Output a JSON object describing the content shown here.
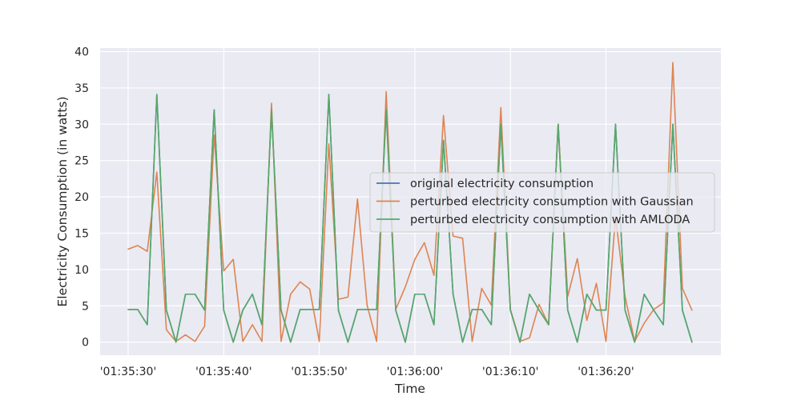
{
  "chart_data": {
    "type": "line",
    "title": "",
    "xlabel": "Time",
    "ylabel": "Electricity Consumption (in watts)",
    "x_tick_labels": [
      "'01:35:30'",
      "'01:35:40'",
      "'01:35:50'",
      "'01:36:00'",
      "'01:36:10'",
      "'01:36:20'"
    ],
    "y_tick_labels": [
      "0",
      "5",
      "10",
      "15",
      "20",
      "25",
      "30",
      "35",
      "40"
    ],
    "ylim": [
      -1.8,
      40.5
    ],
    "grid": true,
    "legend_position": "center-right",
    "x": [
      "01:35:30",
      "01:35:31",
      "01:35:32",
      "01:35:33",
      "01:35:34",
      "01:35:35",
      "01:35:36",
      "01:35:37",
      "01:35:38",
      "01:35:39",
      "01:35:40",
      "01:35:41",
      "01:35:42",
      "01:35:43",
      "01:35:44",
      "01:35:45",
      "01:35:46",
      "01:35:47",
      "01:35:48",
      "01:35:49",
      "01:35:50",
      "01:35:51",
      "01:35:52",
      "01:35:53",
      "01:35:54",
      "01:35:55",
      "01:35:56",
      "01:35:57",
      "01:35:58",
      "01:35:59",
      "01:36:00",
      "01:36:01",
      "01:36:02",
      "01:36:03",
      "01:36:04",
      "01:36:05",
      "01:36:06",
      "01:36:07",
      "01:36:08",
      "01:36:09",
      "01:36:10",
      "01:36:11",
      "01:36:12",
      "01:36:13",
      "01:36:14",
      "01:36:15",
      "01:36:16",
      "01:36:17",
      "01:36:18",
      "01:36:19",
      "01:36:20",
      "01:36:21",
      "01:36:22",
      "01:36:23",
      "01:36:24",
      "01:36:25",
      "01:36:26",
      "01:36:27",
      "01:36:28",
      "01:36:29"
    ],
    "series": [
      {
        "name": "original electricity consumption",
        "color": "#4c72b0",
        "values": [
          4.5,
          4.5,
          2.4,
          34.1,
          4.4,
          0,
          6.6,
          6.6,
          4.4,
          32,
          4.4,
          0,
          4.4,
          6.6,
          2.4,
          32,
          4.4,
          0,
          4.5,
          4.5,
          4.5,
          34.1,
          4.4,
          0,
          4.5,
          4.5,
          4.5,
          32,
          4.4,
          0,
          6.6,
          6.6,
          2.4,
          27.8,
          6.6,
          0,
          4.5,
          4.5,
          2.4,
          30,
          4.4,
          0,
          6.6,
          4.4,
          2.4,
          30,
          4.4,
          0,
          6.6,
          4.4,
          4.4,
          30,
          4.4,
          0,
          6.6,
          4.4,
          2.4,
          30,
          4.4,
          0
        ]
      },
      {
        "name": "perturbed electricity consumption with Gaussian",
        "color": "#dd8452",
        "values": [
          12.8,
          13.3,
          12.5,
          23.4,
          1.7,
          0.1,
          1,
          0.1,
          2.2,
          28.5,
          9.8,
          11.4,
          0.1,
          2.4,
          0.1,
          32.9,
          0.1,
          6.6,
          8.3,
          7.3,
          0.1,
          27.3,
          5.9,
          6.2,
          19.7,
          5.1,
          0.1,
          34.5,
          4.5,
          7.6,
          11.4,
          13.7,
          9.2,
          31.2,
          14.6,
          14.3,
          0.1,
          7.4,
          5.1,
          32.3,
          4.5,
          0.1,
          0.6,
          5.2,
          2.4,
          30,
          6.3,
          11.5,
          3,
          8.1,
          0.1,
          17.3,
          6.3,
          0.1,
          2.6,
          4.5,
          5.4,
          38.5,
          7.4,
          4.4
        ]
      },
      {
        "name": "perturbed electricity consumption with AMLODA",
        "color": "#55a868",
        "values": [
          4.5,
          4.5,
          2.4,
          34.1,
          4.4,
          0,
          6.6,
          6.6,
          4.4,
          32,
          4.4,
          0,
          4.4,
          6.6,
          2.4,
          32,
          4.4,
          0,
          4.5,
          4.5,
          4.5,
          34.1,
          4.4,
          0,
          4.5,
          4.5,
          4.5,
          32,
          4.4,
          0,
          6.6,
          6.6,
          2.4,
          27.8,
          6.6,
          0,
          4.5,
          4.5,
          2.4,
          30,
          4.4,
          0,
          6.6,
          4.4,
          2.4,
          30,
          4.4,
          0,
          6.6,
          4.4,
          4.4,
          30,
          4.4,
          0,
          6.6,
          4.4,
          2.4,
          30,
          4.4,
          0
        ]
      }
    ]
  }
}
